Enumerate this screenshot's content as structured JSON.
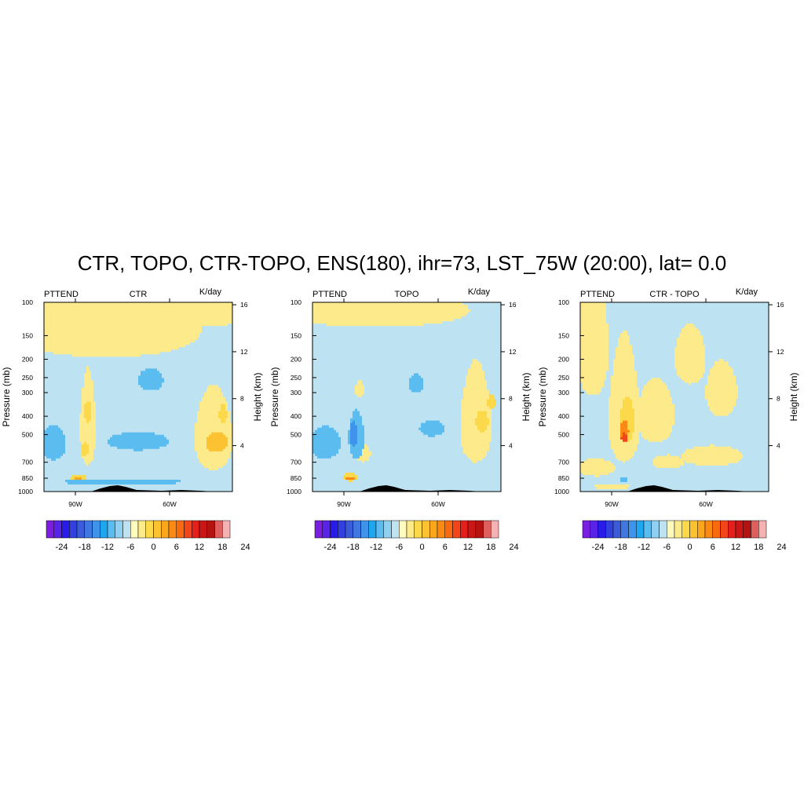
{
  "title": "CTR, TOPO, CTR-TOPO, ENS(180), ihr=73, LST_75W (20:00), lat=  0.0",
  "palette": [
    "#7a1fe0",
    "#5a23e8",
    "#2a1ce8",
    "#3340e0",
    "#3b5bd8",
    "#3f78e0",
    "#3f93ea",
    "#1fa6f0",
    "#5abcef",
    "#8fd0f2",
    "#bde3f3",
    "#fffbbf",
    "#fdea8a",
    "#fcd94a",
    "#fdc232",
    "#fca61c",
    "#fb8a14",
    "#f86a10",
    "#f2451a",
    "#e4201c",
    "#cb1616",
    "#b51212",
    "#df5e5e",
    "#f6b2b2"
  ],
  "colorbar_labels": [
    "-24",
    "-18",
    "-12",
    "-6",
    "0",
    "6",
    "12",
    "18",
    "24"
  ],
  "chart_data": [
    {
      "type": "heatmap",
      "subtitle": "CTR",
      "left_label": "PTTEND",
      "right_label": "K/day",
      "ylabel": "Pressure (mb)",
      "ylabel_right": "Height (km)",
      "x_ticks": [
        "90W",
        "60W"
      ],
      "x_tick_values": [
        -90,
        -60
      ],
      "xlim": [
        -100,
        -40
      ],
      "y_ticks": [
        "100",
        "150",
        "200",
        "250",
        "300",
        "400",
        "500",
        "700",
        "850",
        "1000"
      ],
      "y_tick_values": [
        100,
        150,
        200,
        250,
        300,
        400,
        500,
        700,
        850,
        1000
      ],
      "ylim": [
        100,
        1000
      ],
      "y_right_ticks": [
        "16",
        "12",
        "8",
        "4"
      ],
      "background_value": -2,
      "features": [
        {
          "lon": -80,
          "p": 140,
          "rlon": 30,
          "rp": 55,
          "value": 2
        },
        {
          "lon": -48,
          "p": 110,
          "rlon": 12,
          "rp": 25,
          "value": 2
        },
        {
          "lon": -86,
          "p": 470,
          "rlon": 2.5,
          "rp": 250,
          "value": 2
        },
        {
          "lon": -86,
          "p": 380,
          "rlon": 1.2,
          "rp": 50,
          "value": 5
        },
        {
          "lon": -87,
          "p": 600,
          "rlon": 1.2,
          "rp": 50,
          "value": 5
        },
        {
          "lon": -89,
          "p": 845,
          "rlon": 2.5,
          "rp": 30,
          "value": 5
        },
        {
          "lon": -89,
          "p": 850,
          "rlon": 1.2,
          "rp": 15,
          "value": 8
        },
        {
          "lon": -46,
          "p": 520,
          "rlon": 6,
          "rp": 250,
          "value": 2
        },
        {
          "lon": -45,
          "p": 550,
          "rlon": 3.5,
          "rp": 70,
          "value": 6
        },
        {
          "lon": -43,
          "p": 390,
          "rlon": 1.2,
          "rp": 50,
          "value": 5
        },
        {
          "lon": -97,
          "p": 560,
          "rlon": 4,
          "rp": 120,
          "value": -5
        },
        {
          "lon": -70,
          "p": 545,
          "rlon": 10,
          "rp": 60,
          "value": -5
        },
        {
          "lon": -66,
          "p": 258,
          "rlon": 4,
          "rp": 35,
          "value": -5
        },
        {
          "lon": -75,
          "p": 890,
          "rlon": 20,
          "rp": 28,
          "value": -5
        }
      ]
    },
    {
      "type": "heatmap",
      "subtitle": "TOPO",
      "left_label": "PTTEND",
      "right_label": "K/day",
      "ylabel": "Pressure (mb)",
      "ylabel_right": "Height (km)",
      "x_ticks": [
        "90W",
        "60W"
      ],
      "x_tick_values": [
        -90,
        -60
      ],
      "xlim": [
        -100,
        -40
      ],
      "y_ticks": [
        "100",
        "150",
        "200",
        "250",
        "300",
        "400",
        "500",
        "700",
        "850",
        "1000"
      ],
      "y_tick_values": [
        100,
        150,
        200,
        250,
        300,
        400,
        500,
        700,
        850,
        1000
      ],
      "ylim": [
        100,
        1000
      ],
      "y_right_ticks": [
        "16",
        "12",
        "8",
        "4"
      ],
      "background_value": -2,
      "features": [
        {
          "lon": -80,
          "p": 110,
          "rlon": 30,
          "rp": 25,
          "value": 2
        },
        {
          "lon": -48,
          "p": 450,
          "rlon": 5,
          "rp": 250,
          "value": 2
        },
        {
          "lon": -46,
          "p": 430,
          "rlon": 2,
          "rp": 60,
          "value": 5
        },
        {
          "lon": -43,
          "p": 340,
          "rlon": 1.2,
          "rp": 30,
          "value": 5
        },
        {
          "lon": -84,
          "p": 630,
          "rlon": 2.5,
          "rp": 70,
          "value": 2
        },
        {
          "lon": -85,
          "p": 290,
          "rlon": 1.5,
          "rp": 30,
          "value": 2
        },
        {
          "lon": -88,
          "p": 840,
          "rlon": 2.5,
          "rp": 40,
          "value": 5
        },
        {
          "lon": -88,
          "p": 848,
          "rlon": 1.4,
          "rp": 18,
          "value": 10
        },
        {
          "lon": -86,
          "p": 520,
          "rlon": 2.5,
          "rp": 150,
          "value": -5
        },
        {
          "lon": -87,
          "p": 500,
          "rlon": 1.3,
          "rp": 80,
          "value": -10
        },
        {
          "lon": -96,
          "p": 560,
          "rlon": 5,
          "rp": 110,
          "value": -5
        },
        {
          "lon": -62,
          "p": 465,
          "rlon": 4,
          "rp": 45,
          "value": -5
        },
        {
          "lon": -67,
          "p": 270,
          "rlon": 2.5,
          "rp": 30,
          "value": -5
        }
      ]
    },
    {
      "type": "heatmap",
      "subtitle": "CTR - TOPO",
      "left_label": "PTTEND",
      "right_label": "K/day",
      "ylabel": "Pressure (mb)",
      "ylabel_right": "Height (km)",
      "x_ticks": [
        "90W",
        "60W"
      ],
      "x_tick_values": [
        -90,
        -60
      ],
      "xlim": [
        -100,
        -40
      ],
      "y_ticks": [
        "100",
        "150",
        "200",
        "250",
        "300",
        "400",
        "500",
        "700",
        "850",
        "1000"
      ],
      "y_tick_values": [
        100,
        150,
        200,
        250,
        300,
        400,
        500,
        700,
        850,
        1000
      ],
      "ylim": [
        100,
        1000
      ],
      "y_right_ticks": [
        "16",
        "12",
        "8",
        "4"
      ],
      "background_value": -2,
      "features": [
        {
          "lon": -96,
          "p": 180,
          "rlon": 5,
          "rp": 130,
          "value": 2
        },
        {
          "lon": -86,
          "p": 420,
          "rlon": 5,
          "rp": 280,
          "value": 2
        },
        {
          "lon": -85,
          "p": 430,
          "rlon": 2.2,
          "rp": 120,
          "value": 5
        },
        {
          "lon": -86,
          "p": 480,
          "rlon": 1.4,
          "rp": 60,
          "value": 10
        },
        {
          "lon": -86,
          "p": 520,
          "rlon": 0.9,
          "rp": 30,
          "value": 14
        },
        {
          "lon": -76,
          "p": 400,
          "rlon": 6,
          "rp": 150,
          "value": 2
        },
        {
          "lon": -65,
          "p": 200,
          "rlon": 5,
          "rp": 70,
          "value": 2
        },
        {
          "lon": -55,
          "p": 300,
          "rlon": 5,
          "rp": 100,
          "value": 2
        },
        {
          "lon": -58,
          "p": 650,
          "rlon": 10,
          "rp": 80,
          "value": 2
        },
        {
          "lon": -95,
          "p": 750,
          "rlon": 6,
          "rp": 80,
          "value": 2
        },
        {
          "lon": -72,
          "p": 700,
          "rlon": 5,
          "rp": 60,
          "value": 2
        },
        {
          "lon": -86,
          "p": 870,
          "rlon": 1.3,
          "rp": 25,
          "value": -6
        },
        {
          "lon": -90,
          "p": 940,
          "rlon": 6,
          "rp": 30,
          "value": 2
        }
      ]
    }
  ]
}
